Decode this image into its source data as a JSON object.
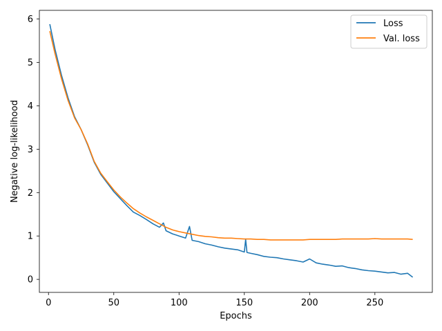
{
  "chart_data": {
    "type": "line",
    "title": "",
    "xlabel": "Epochs",
    "ylabel": "Negative log-likelihood",
    "xlim": [
      -7,
      294
    ],
    "ylim": [
      -0.3,
      6.2
    ],
    "xticks": [
      0,
      50,
      100,
      150,
      200,
      250
    ],
    "yticks": [
      0,
      1,
      2,
      3,
      4,
      5,
      6
    ],
    "grid": false,
    "legend": "top-right",
    "colors": {
      "Loss": "#1f77b4",
      "Val. loss": "#ff7f0e"
    },
    "series": [
      {
        "name": "Loss",
        "color": "#1f77b4",
        "x": [
          1,
          5,
          10,
          15,
          20,
          25,
          30,
          35,
          40,
          45,
          50,
          55,
          60,
          65,
          70,
          75,
          80,
          85,
          88,
          90,
          95,
          100,
          105,
          108,
          110,
          115,
          120,
          125,
          130,
          135,
          140,
          145,
          150,
          151,
          152,
          155,
          160,
          165,
          170,
          175,
          180,
          185,
          190,
          195,
          200,
          205,
          210,
          215,
          220,
          225,
          230,
          235,
          240,
          245,
          250,
          255,
          260,
          265,
          270,
          275,
          279
        ],
        "y": [
          5.88,
          5.3,
          4.7,
          4.18,
          3.75,
          3.45,
          3.1,
          2.7,
          2.42,
          2.22,
          2.02,
          1.86,
          1.7,
          1.55,
          1.47,
          1.38,
          1.28,
          1.2,
          1.3,
          1.12,
          1.05,
          1.0,
          0.95,
          1.22,
          0.9,
          0.87,
          0.82,
          0.79,
          0.75,
          0.72,
          0.7,
          0.68,
          0.63,
          0.92,
          0.62,
          0.6,
          0.57,
          0.53,
          0.51,
          0.5,
          0.47,
          0.45,
          0.43,
          0.4,
          0.47,
          0.38,
          0.35,
          0.33,
          0.3,
          0.31,
          0.27,
          0.25,
          0.22,
          0.2,
          0.19,
          0.17,
          0.15,
          0.16,
          0.12,
          0.14,
          0.05
        ]
      },
      {
        "name": "Val. loss",
        "color": "#ff7f0e",
        "x": [
          1,
          5,
          10,
          15,
          20,
          25,
          30,
          35,
          40,
          45,
          50,
          55,
          60,
          65,
          70,
          75,
          80,
          85,
          90,
          95,
          100,
          105,
          110,
          115,
          120,
          125,
          130,
          135,
          140,
          145,
          150,
          155,
          160,
          165,
          170,
          175,
          180,
          185,
          190,
          195,
          200,
          205,
          210,
          215,
          220,
          225,
          230,
          235,
          240,
          245,
          250,
          255,
          260,
          265,
          270,
          275,
          279
        ],
        "y": [
          5.72,
          5.2,
          4.62,
          4.12,
          3.72,
          3.45,
          3.12,
          2.72,
          2.45,
          2.25,
          2.06,
          1.9,
          1.76,
          1.63,
          1.53,
          1.44,
          1.36,
          1.28,
          1.2,
          1.14,
          1.1,
          1.07,
          1.04,
          1.01,
          0.99,
          0.98,
          0.96,
          0.95,
          0.95,
          0.94,
          0.93,
          0.93,
          0.92,
          0.92,
          0.91,
          0.91,
          0.91,
          0.91,
          0.91,
          0.91,
          0.92,
          0.92,
          0.92,
          0.92,
          0.92,
          0.93,
          0.93,
          0.93,
          0.93,
          0.93,
          0.94,
          0.93,
          0.93,
          0.93,
          0.93,
          0.93,
          0.92
        ]
      }
    ]
  }
}
